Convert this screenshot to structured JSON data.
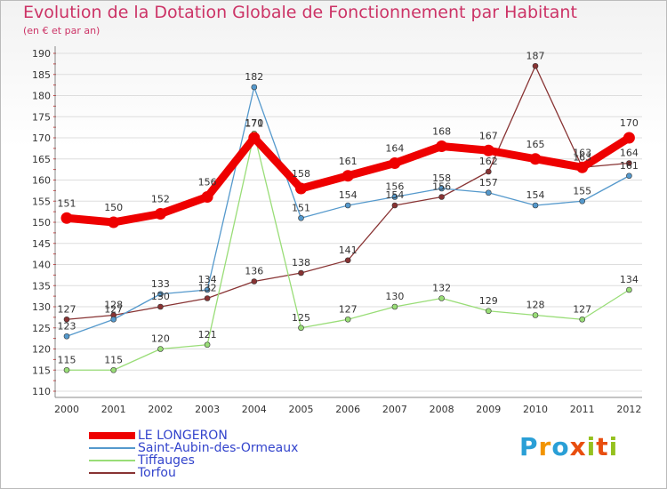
{
  "chart_data": {
    "type": "line",
    "title": "Evolution de la Dotation Globale de Fonctionnement par Habitant",
    "subtitle": "(en € et par an)",
    "xlabel": "",
    "ylabel": "",
    "categories": [
      "2000",
      "2001",
      "2002",
      "2003",
      "2004",
      "2005",
      "2006",
      "2007",
      "2008",
      "2009",
      "2010",
      "2011",
      "2012"
    ],
    "ylim": [
      110,
      190
    ],
    "yticks": [
      110,
      115,
      120,
      125,
      130,
      135,
      140,
      145,
      150,
      155,
      160,
      165,
      170,
      175,
      180,
      185,
      190
    ],
    "grid": "horizontal",
    "legend_position": "bottom-left",
    "series": [
      {
        "name": "LE LONGERON",
        "color": "#ee0000",
        "values": [
          151,
          150,
          152,
          156,
          170,
          158,
          161,
          164,
          168,
          167,
          165,
          163,
          170
        ]
      },
      {
        "name": "Saint-Aubin-des-Ormeaux",
        "color": "#5599cc",
        "values": [
          123,
          127,
          133,
          134,
          182,
          151,
          154,
          156,
          158,
          157,
          154,
          155,
          161
        ]
      },
      {
        "name": "Tiffauges",
        "color": "#99dd77",
        "values": [
          115,
          115,
          120,
          121,
          171,
          125,
          127,
          130,
          132,
          129,
          128,
          127,
          134
        ]
      },
      {
        "name": "Torfou",
        "color": "#883333",
        "values": [
          127,
          128,
          130,
          132,
          136,
          138,
          141,
          154,
          156,
          162,
          187,
          163,
          164
        ]
      }
    ]
  },
  "logo": {
    "letters": [
      "P",
      "r",
      "o",
      "x",
      "i",
      "t",
      "i"
    ],
    "colors": [
      "#2a9fd6",
      "#f29400",
      "#2a9fd6",
      "#e84e0f",
      "#95c11f",
      "#e84e0f",
      "#95c11f"
    ]
  }
}
